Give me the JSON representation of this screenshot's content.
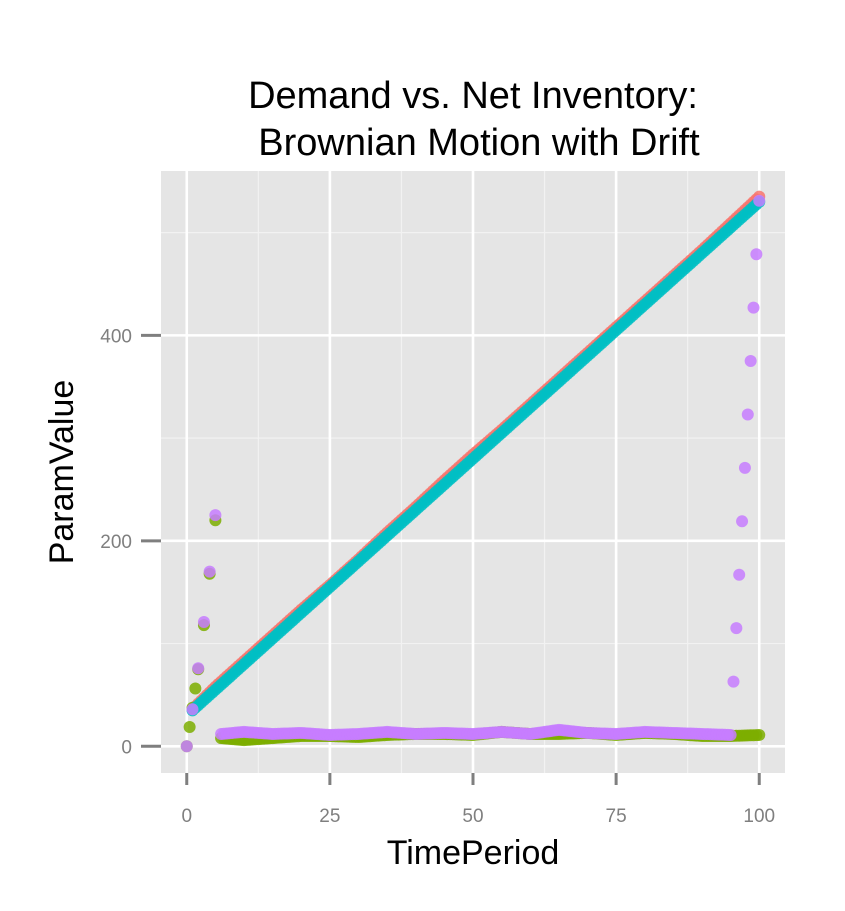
{
  "chart_data": {
    "type": "scatter",
    "title_lines": [
      "Demand vs. Net Inventory:",
      "Brownian Motion with Drift"
    ],
    "xlabel": "TimePeriod",
    "ylabel": "ParamValue",
    "xlim": [
      -4.5,
      104.5
    ],
    "ylim": [
      -26,
      560
    ],
    "x_ticks": [
      0,
      25,
      50,
      75,
      100
    ],
    "x_tick_labels": [
      "0",
      "25",
      "50",
      "75",
      "100"
    ],
    "y_ticks": [
      0,
      200,
      400
    ],
    "y_tick_labels": [
      "0",
      "200",
      "400"
    ],
    "grid": true,
    "legend": "none",
    "series": [
      {
        "color": "#F8766D",
        "x": [
          1,
          5,
          10,
          15,
          20,
          25,
          30,
          35,
          40,
          45,
          50,
          55,
          60,
          65,
          70,
          75,
          80,
          85,
          90,
          95,
          100
        ],
        "y": [
          36,
          58,
          83,
          108,
          133,
          157,
          182,
          208,
          233,
          259,
          284,
          308,
          333,
          358,
          383,
          408,
          433,
          458,
          483,
          509,
          535
        ]
      },
      {
        "color": "#7CAE00",
        "x": [
          0,
          2,
          3,
          4,
          5,
          6,
          10,
          15,
          20,
          25,
          30,
          35,
          40,
          45,
          50,
          55,
          60,
          65,
          70,
          75,
          80,
          85,
          90,
          95,
          100
        ],
        "y": [
          0,
          75,
          118,
          168,
          220,
          8,
          6,
          8,
          10,
          10,
          9,
          11,
          12,
          12,
          11,
          14,
          12,
          12,
          13,
          11,
          13,
          12,
          10,
          10,
          11
        ]
      },
      {
        "color": "#00BFC4",
        "x": [
          1,
          5,
          10,
          15,
          20,
          25,
          30,
          35,
          40,
          45,
          50,
          55,
          60,
          65,
          70,
          75,
          80,
          85,
          90,
          95,
          100
        ],
        "y": [
          35,
          55,
          80,
          105,
          130,
          155,
          180,
          205,
          230,
          255,
          280,
          305,
          330,
          355,
          380,
          405,
          430,
          455,
          480,
          505,
          530
        ]
      },
      {
        "color": "#C77CFF",
        "x": [
          0,
          1,
          2,
          3,
          4,
          5,
          6,
          10,
          15,
          20,
          25,
          30,
          35,
          40,
          45,
          50,
          55,
          60,
          65,
          70,
          75,
          80,
          85,
          90,
          95,
          100
        ],
        "y": [
          0,
          36,
          76,
          121,
          170,
          225,
          12,
          14,
          12,
          13,
          11,
          12,
          14,
          12,
          13,
          12,
          14,
          12,
          16,
          13,
          12,
          14,
          13,
          12,
          11,
          531
        ]
      }
    ]
  }
}
